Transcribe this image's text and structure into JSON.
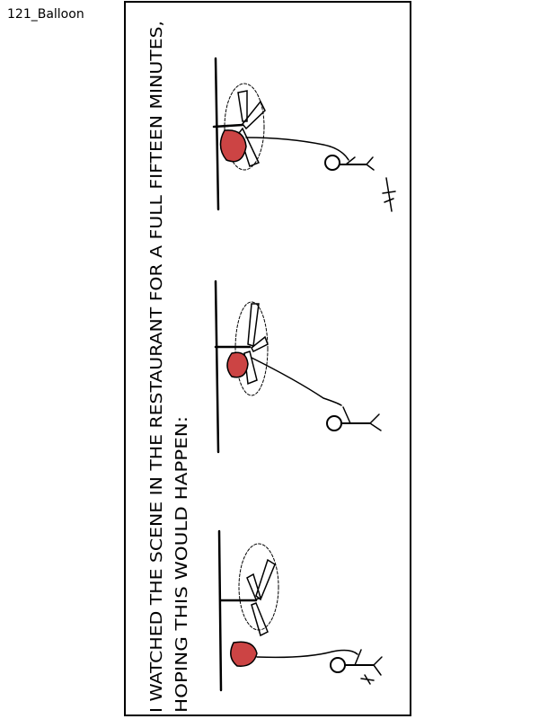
{
  "file_label": "121_Balloon",
  "caption": {
    "line1": "I WATCHED THE SCENE IN THE RESTAURANT FOR A FULL FIFTEEN MINUTES,",
    "line2": "HOPING THIS WOULD HAPPEN:"
  },
  "colors": {
    "balloon": "#cc4444",
    "ink": "#000000",
    "background": "#ffffff"
  },
  "panels": [
    {
      "name": "scene-1",
      "description_hidden": true
    },
    {
      "name": "scene-2",
      "description_hidden": true
    },
    {
      "name": "scene-3",
      "description_hidden": true
    }
  ]
}
